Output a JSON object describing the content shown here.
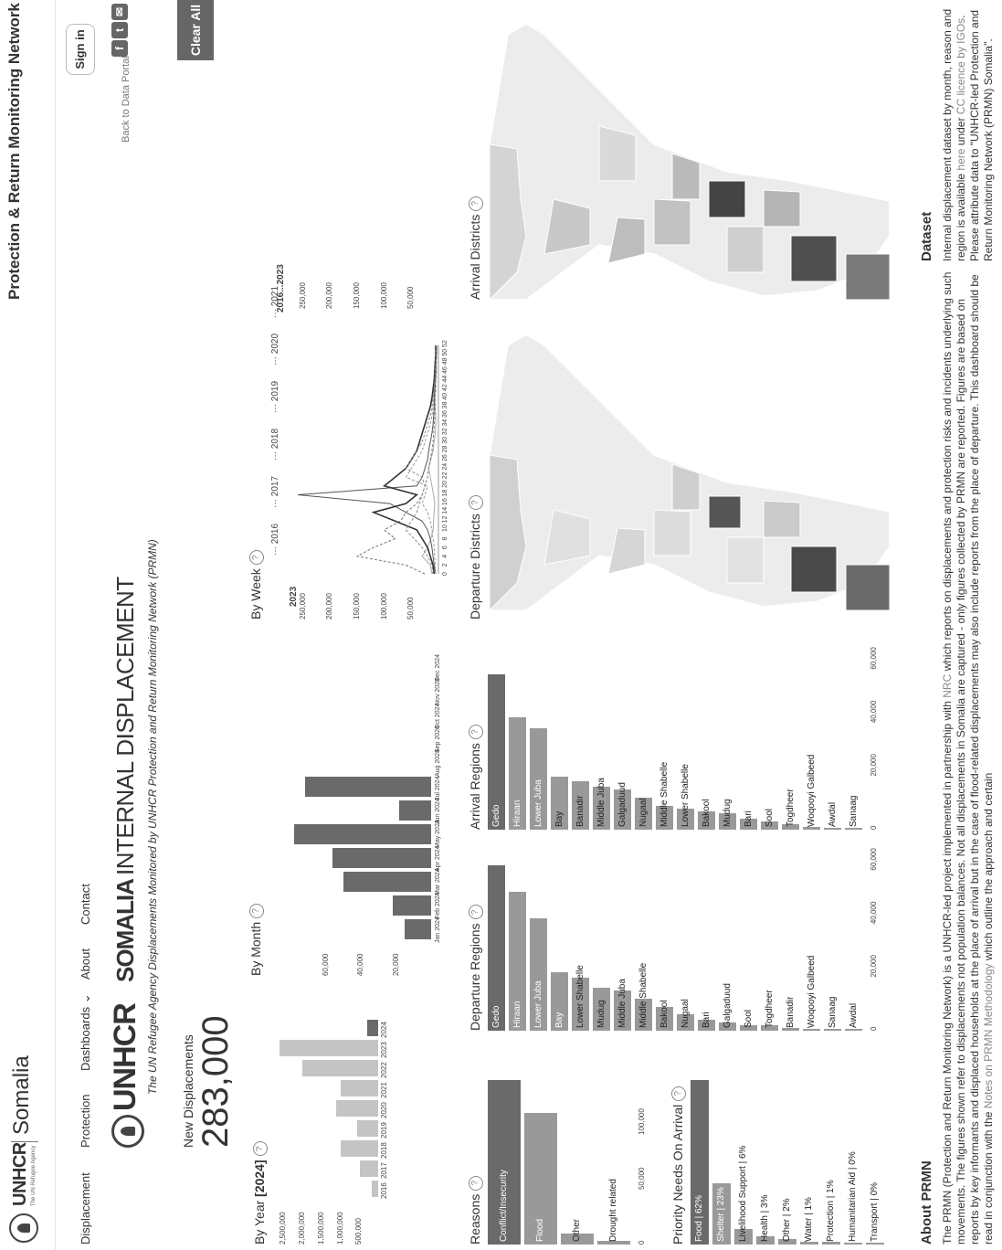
{
  "header": {
    "logo_word": "UNHCR",
    "logo_sub": "The UN Refugee Agency",
    "country": "Somalia",
    "site_title": "Protection & Return Monitoring Network",
    "sign_in": "Sign in",
    "back_link": "Back to Data Portal",
    "social": [
      "f",
      "t",
      "✉"
    ],
    "clear_all": "Clear All"
  },
  "nav": {
    "items": [
      "Displacement",
      "Protection",
      "Dashboards ⌄",
      "About",
      "Contact"
    ]
  },
  "brand": {
    "unhcr": "UNHCR",
    "somalia": "SOMALIA",
    "internal": "INTERNAL DISPLACEMENT",
    "subtitle": "The UN Refugee Agency Displacements Monitored by UNHCR Protection and Return Monitoring Network (PRMN)"
  },
  "summary": {
    "label": "New Displacements",
    "value": "283,000"
  },
  "colors": {
    "bar_dark": "#6a6a6a",
    "bar_mid": "#999999",
    "bar_light": "#c4c4c4",
    "map_base": "#ececec"
  },
  "by_year": {
    "title_prefix": "By Year ",
    "title_selected": "[2024]",
    "chart_data": {
      "type": "bar",
      "categories": [
        "2016",
        "2017",
        "2018",
        "2019",
        "2020",
        "2021",
        "2022",
        "2023",
        "2024"
      ],
      "values": [
        180000,
        480000,
        1000000,
        550000,
        1100000,
        980000,
        2000000,
        2600000,
        283000
      ],
      "ylim": [
        0,
        2700000
      ],
      "ticks": [
        "500,000",
        "1,000,000",
        "1,500,000",
        "2,000,000",
        "2,500,000"
      ],
      "tick_values": [
        500000,
        1000000,
        1500000,
        2000000,
        2500000
      ],
      "selected": "2024"
    }
  },
  "by_month": {
    "title": "By Month",
    "chart_data": {
      "type": "bar",
      "categories": [
        "Jan 2024",
        "Feb 2024",
        "Mar 2024",
        "Apr 2024",
        "May 2024",
        "Jun 2024",
        "Jul 2024",
        "Aug 2024",
        "Sep 2024",
        "Oct 2024",
        "Nov 2024",
        "Dec 2024"
      ],
      "values": [
        15000,
        22000,
        50000,
        56000,
        78000,
        18000,
        72000,
        0,
        0,
        0,
        0,
        0
      ],
      "ylim": [
        0,
        78000
      ],
      "ticks": [
        "20,000",
        "40,000",
        "60,000"
      ],
      "tick_values": [
        20000,
        40000,
        60000
      ]
    }
  },
  "by_week": {
    "title": "By Week",
    "legend": [
      "2016",
      "2017",
      "2018",
      "2019",
      "2020",
      "2021"
    ],
    "y_ticks_left": [
      "50,000",
      "100,000",
      "150,000",
      "200,000",
      "250,000"
    ],
    "y_ticks_right": [
      "50,000",
      "100,000",
      "150,000",
      "200,000",
      "250,000"
    ],
    "y_tick_values": [
      50000,
      100000,
      150000,
      200000,
      250000
    ],
    "x_ticks": [
      "0",
      "2",
      "4",
      "6",
      "8",
      "10",
      "12",
      "14",
      "16",
      "18",
      "20",
      "22",
      "24",
      "26",
      "28",
      "30",
      "32",
      "34",
      "36",
      "38",
      "40",
      "42",
      "44",
      "46",
      "48",
      "50",
      "52"
    ],
    "label_year": "2023",
    "label_range": "2016...2023",
    "chart_data": {
      "type": "line",
      "series": [
        {
          "name": "2016",
          "values": [
            12000,
            15000,
            30000,
            20000,
            14000,
            10000,
            9000,
            8000,
            7000,
            9000,
            12000,
            15000,
            18000,
            14000,
            10000,
            8000,
            6000,
            5000,
            5000,
            6000,
            7000,
            6000,
            5000,
            4000,
            4000,
            3000,
            3000
          ]
        },
        {
          "name": "2017",
          "values": [
            25000,
            60000,
            150000,
            120000,
            80000,
            100000,
            70000,
            60000,
            40000,
            30000,
            25000,
            20000,
            18000,
            15000,
            12000,
            10000,
            9000,
            8000,
            7000,
            6000,
            6000,
            5000,
            5000,
            4000,
            4000,
            4000,
            3000
          ]
        },
        {
          "name": "2018",
          "values": [
            5000,
            8000,
            10000,
            12000,
            15000,
            20000,
            30000,
            60000,
            90000,
            260000,
            40000,
            30000,
            25000,
            20000,
            18000,
            15000,
            12000,
            10000,
            9000,
            8000,
            8000,
            7000,
            6000,
            5000,
            5000,
            4000,
            4000
          ]
        },
        {
          "name": "2019",
          "values": [
            5000,
            6000,
            7000,
            8000,
            10000,
            12000,
            15000,
            20000,
            30000,
            25000,
            20000,
            60000,
            50000,
            40000,
            30000,
            25000,
            20000,
            15000,
            12000,
            10000,
            9000,
            8000,
            7000,
            6000,
            5000,
            5000,
            4000
          ]
        },
        {
          "name": "2020",
          "values": [
            8000,
            10000,
            15000,
            20000,
            30000,
            40000,
            80000,
            120000,
            60000,
            40000,
            100000,
            80000,
            60000,
            50000,
            40000,
            35000,
            30000,
            25000,
            20000,
            15000,
            12000,
            10000,
            8000,
            7000,
            6000,
            5000,
            5000
          ]
        },
        {
          "name": "2021",
          "values": [
            10000,
            12000,
            20000,
            30000,
            45000,
            60000,
            50000,
            40000,
            35000,
            30000,
            25000,
            30000,
            60000,
            50000,
            40000,
            30000,
            25000,
            20000,
            15000,
            12000,
            10000,
            8000,
            7000,
            6000,
            5000,
            5000,
            4000
          ]
        }
      ],
      "ylim": [
        0,
        270000
      ]
    }
  },
  "reasons": {
    "title": "Reasons",
    "chart_data": {
      "type": "bar",
      "categories": [
        "Conflict/Insecurity",
        "Flood",
        "Other",
        "Drought related"
      ],
      "values": [
        150000,
        120000,
        10000,
        3000
      ],
      "xlim": [
        0,
        150000
      ],
      "ticks": [
        "0",
        "50,000",
        "100,000"
      ],
      "tick_values": [
        0,
        50000,
        100000
      ]
    }
  },
  "priority": {
    "title": "Priority Needs On Arrival",
    "chart_data": {
      "type": "bar",
      "categories": [
        "Food | 62%",
        "Shelter | 23%",
        "Livelihood Support | 6%",
        "Health | 3%",
        "Other | 2%",
        "Water | 1%",
        "Protection | 1%",
        "Humanitarian Aid | 0%",
        "Transport | 0%"
      ],
      "values": [
        62,
        23,
        6,
        3,
        2,
        1,
        1,
        0,
        0
      ],
      "xlim": [
        0,
        62
      ]
    }
  },
  "departure_regions": {
    "title": "Departure Regions",
    "chart_data": {
      "type": "bar",
      "categories": [
        "Gedo",
        "Hiraan",
        "Lower Juba",
        "Bay",
        "Lower Shabelle",
        "Mudug",
        "Middle Juba",
        "Middle Shabelle",
        "Bakool",
        "Nugaal",
        "Bari",
        "Galgaduud",
        "Sool",
        "Togdheer",
        "Banadir",
        "Woqooyi Galbeed",
        "Sanaag",
        "Awdal"
      ],
      "values": [
        62000,
        52000,
        42000,
        22000,
        20000,
        16000,
        15000,
        12000,
        9000,
        6000,
        4000,
        3000,
        2000,
        2000,
        1000,
        800,
        500,
        300
      ],
      "xlim": [
        0,
        65000
      ],
      "ticks": [
        "0",
        "20,000",
        "40,000",
        "60,000"
      ],
      "tick_values": [
        0,
        20000,
        40000,
        60000
      ]
    }
  },
  "arrival_regions": {
    "title": "Arrival Regions",
    "chart_data": {
      "type": "bar",
      "categories": [
        "Gedo",
        "Hiraan",
        "Lower Juba",
        "Bay",
        "Banadir",
        "Middle Juba",
        "Galgaduud",
        "Nugaal",
        "Middle Shabelle",
        "Lower Shabelle",
        "Bakool",
        "Mudug",
        "Bari",
        "Sool",
        "Togdheer",
        "Woqooyi Galbeed",
        "Awdal",
        "Sanaag"
      ],
      "values": [
        58000,
        42000,
        38000,
        20000,
        18000,
        16000,
        15000,
        12000,
        9000,
        8000,
        7000,
        6000,
        4000,
        3000,
        2000,
        1000,
        500,
        300
      ],
      "xlim": [
        0,
        65000
      ],
      "ticks": [
        "0",
        "20,000",
        "40,000",
        "60,000"
      ],
      "tick_values": [
        0,
        20000,
        40000,
        60000
      ]
    }
  },
  "departure_districts": {
    "title": "Departure Districts"
  },
  "arrival_districts": {
    "title": "Arrival Districts"
  },
  "about": {
    "title": "About PRMN",
    "text_a": "The PRMN (Protection and Return Monitoring Network) is a UNHCR-led project implemented in partnership with ",
    "link_nrc": "NRC",
    "text_b": " which reports on displacements and protection risks and incidents underlying such movements. The figures shown refer to displacements not population balances. Not all displacements in Somalia are captured - only figures collected by PRMN are reported. Figures are based on reports by key informants and displaced households at the place of arrival but in the case of flood-related displacements may also include reports from the place of departure. This dashboard should be read in conjunction with the ",
    "link_notes": "Notes on PRMN Methodology",
    "text_c": " which outline the approach and certain"
  },
  "dataset": {
    "title": "Dataset",
    "text_a": "Internal displacement dataset by month, reason and region is available ",
    "link_here": "here",
    "text_b": " under ",
    "link_cc": "CC licence by IGOs",
    "text_c": ". Please attribute data to \"UNHCR-led Protection and Return Monitoring Network (PRMN) Somalia\"."
  }
}
